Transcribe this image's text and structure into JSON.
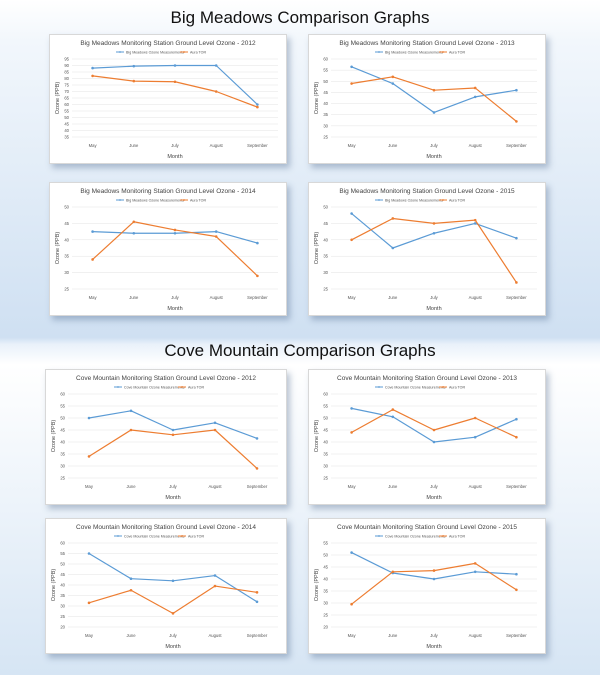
{
  "colors": {
    "series1": "#5b9bd5",
    "series2": "#ed7d31",
    "grid": "#e3e3e3"
  },
  "sections": [
    {
      "title": "Big Meadows Comparison Graphs"
    },
    {
      "title": "Cove Mountain Comparison Graphs"
    }
  ],
  "chart_data": [
    {
      "type": "line",
      "title": "Big Meadows Monitoring Station Ground Level Ozone - 2012",
      "xlabel": "Month",
      "ylabel": "Ozone (PPB)",
      "categories": [
        "May",
        "June",
        "July",
        "August",
        "September"
      ],
      "ylim": [
        35,
        55
      ],
      "yticks": [
        35,
        40,
        45,
        50,
        55,
        60,
        65,
        70,
        75,
        80,
        85,
        90,
        95
      ],
      "series": [
        {
          "name": "Big Meadows Ozone Measurements",
          "values": [
            88,
            89.5,
            90,
            90,
            60
          ]
        },
        {
          "name": "Aura TOR",
          "values": [
            82,
            78,
            77.5,
            70,
            58
          ]
        }
      ]
    },
    {
      "type": "line",
      "title": "Big Meadows Monitoring Station Ground Level Ozone - 2013",
      "xlabel": "Month",
      "ylabel": "Ozone (PPB)",
      "categories": [
        "May",
        "June",
        "July",
        "August",
        "September"
      ],
      "yticks": [
        25,
        30,
        35,
        40,
        45,
        50,
        55,
        60
      ],
      "series": [
        {
          "name": "Big Meadows Ozone Measurements",
          "values": [
            56.5,
            49,
            36,
            43,
            46
          ]
        },
        {
          "name": "Aura TOR",
          "values": [
            49,
            52,
            46,
            47,
            32
          ]
        }
      ]
    },
    {
      "type": "line",
      "title": "Big Meadows Monitoring Station Ground Level Ozone - 2014",
      "xlabel": "Month",
      "ylabel": "Ozone (PPB)",
      "categories": [
        "May",
        "June",
        "July",
        "August",
        "September"
      ],
      "yticks": [
        25,
        30,
        35,
        40,
        45,
        50
      ],
      "series": [
        {
          "name": "Big Meadows Ozone Measurements",
          "values": [
            42.5,
            42,
            42,
            42.5,
            39
          ]
        },
        {
          "name": "Aura TOR",
          "values": [
            34,
            45.5,
            43,
            41,
            29
          ]
        }
      ]
    },
    {
      "type": "line",
      "title": "Big Meadows Monitoring Station Ground Level Ozone - 2015",
      "xlabel": "Month",
      "ylabel": "Ozone (PPB)",
      "categories": [
        "May",
        "June",
        "July",
        "August",
        "September"
      ],
      "yticks": [
        25,
        30,
        35,
        40,
        45,
        50
      ],
      "series": [
        {
          "name": "Big Meadows Ozone Measurements",
          "values": [
            48,
            37.5,
            42,
            45,
            40.5
          ]
        },
        {
          "name": "Aura TOR",
          "values": [
            40,
            46.5,
            45,
            46,
            27
          ]
        }
      ]
    },
    {
      "type": "line",
      "title": "Cove Mountain Monitoring Station Ground Level Ozone - 2012",
      "xlabel": "Month",
      "ylabel": "Ozone (PPB)",
      "categories": [
        "May",
        "June",
        "July",
        "August",
        "September"
      ],
      "yticks": [
        25,
        30,
        35,
        40,
        45,
        50,
        55,
        60
      ],
      "series": [
        {
          "name": "Cove Mountain Ozone Measurements",
          "values": [
            50,
            53,
            45,
            48,
            41.5
          ]
        },
        {
          "name": "Aura TOR",
          "values": [
            34,
            45,
            43,
            45,
            29
          ]
        }
      ]
    },
    {
      "type": "line",
      "title": "Cove Mountain Monitoring Station Ground Level Ozone - 2013",
      "xlabel": "Month",
      "ylabel": "Ozone (PPB)",
      "categories": [
        "May",
        "June",
        "July",
        "August",
        "September"
      ],
      "yticks": [
        25,
        30,
        35,
        40,
        45,
        50,
        55,
        60
      ],
      "series": [
        {
          "name": "Cove Mountain Ozone Measurements",
          "values": [
            54,
            50.5,
            40,
            42,
            49.5
          ]
        },
        {
          "name": "Aura TOR",
          "values": [
            44,
            53.5,
            45,
            50,
            42
          ]
        }
      ]
    },
    {
      "type": "line",
      "title": "Cove Mountain Monitoring Station Ground Level Ozone - 2014",
      "xlabel": "Month",
      "ylabel": "Ozone (PPB)",
      "categories": [
        "May",
        "June",
        "July",
        "August",
        "September"
      ],
      "yticks": [
        20,
        25,
        30,
        35,
        40,
        45,
        50,
        55,
        60
      ],
      "series": [
        {
          "name": "Cove Mountain Ozone Measurements",
          "values": [
            55,
            43,
            42,
            44.5,
            32
          ]
        },
        {
          "name": "Aura TOR",
          "values": [
            31.5,
            37.5,
            26.5,
            39.5,
            36.5
          ]
        }
      ]
    },
    {
      "type": "line",
      "title": "Cove Mountain Monitoring Station Ground Level Ozone - 2015",
      "xlabel": "Month",
      "ylabel": "Ozone (PPB)",
      "categories": [
        "May",
        "June",
        "July",
        "August",
        "September"
      ],
      "yticks": [
        20,
        25,
        30,
        35,
        40,
        45,
        50,
        55
      ],
      "series": [
        {
          "name": "Cove Mountain Ozone Measurements",
          "values": [
            51,
            42.5,
            40,
            43,
            42
          ]
        },
        {
          "name": "Aura TOR",
          "values": [
            29.5,
            43,
            43.5,
            46.5,
            35.5
          ]
        }
      ]
    }
  ]
}
